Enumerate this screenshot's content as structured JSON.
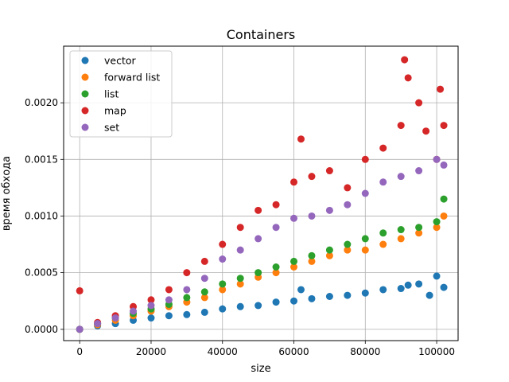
{
  "chart_data": {
    "type": "scatter",
    "title": "Containers",
    "xlabel": "size",
    "ylabel": "время обхода",
    "xlim": [
      -4500,
      106000
    ],
    "ylim": [
      -0.0001,
      0.0025
    ],
    "xticks": [
      0,
      20000,
      40000,
      60000,
      80000,
      100000
    ],
    "xtick_labels": [
      "0",
      "20000",
      "40000",
      "60000",
      "80000",
      "100000"
    ],
    "yticks": [
      0.0,
      0.0005,
      0.001,
      0.0015,
      0.002
    ],
    "ytick_labels": [
      "0.0000",
      "0.0005",
      "0.0010",
      "0.0015",
      "0.0020"
    ],
    "grid": true,
    "legend_position": "top-left",
    "series": [
      {
        "name": "vector",
        "color": "#1f77b4",
        "x": [
          0,
          5000,
          10000,
          15000,
          20000,
          25000,
          30000,
          35000,
          40000,
          45000,
          50000,
          55000,
          60000,
          62000,
          65000,
          70000,
          75000,
          80000,
          85000,
          90000,
          92000,
          95000,
          98000,
          100000,
          102000
        ],
        "y": [
          0.0,
          3e-05,
          5e-05,
          8e-05,
          0.0001,
          0.00012,
          0.00013,
          0.00015,
          0.00018,
          0.0002,
          0.00021,
          0.00024,
          0.00025,
          0.00035,
          0.00027,
          0.00029,
          0.0003,
          0.00032,
          0.00035,
          0.00036,
          0.00039,
          0.0004,
          0.0003,
          0.00047,
          0.00037
        ]
      },
      {
        "name": "forward list",
        "color": "#ff7f0e",
        "x": [
          0,
          5000,
          10000,
          15000,
          20000,
          25000,
          30000,
          35000,
          40000,
          45000,
          50000,
          55000,
          60000,
          65000,
          70000,
          75000,
          80000,
          85000,
          90000,
          95000,
          100000,
          102000
        ],
        "y": [
          0.0,
          4e-05,
          8e-05,
          0.00012,
          0.00016,
          0.0002,
          0.00024,
          0.00028,
          0.00035,
          0.0004,
          0.00046,
          0.0005,
          0.00055,
          0.0006,
          0.00065,
          0.0007,
          0.0007,
          0.00075,
          0.0008,
          0.00085,
          0.0009,
          0.001
        ]
      },
      {
        "name": "list",
        "color": "#2ca02c",
        "x": [
          0,
          5000,
          10000,
          15000,
          20000,
          25000,
          30000,
          35000,
          40000,
          45000,
          50000,
          55000,
          60000,
          65000,
          70000,
          75000,
          80000,
          85000,
          90000,
          95000,
          100000,
          102000
        ],
        "y": [
          0.0,
          5e-05,
          0.0001,
          0.00014,
          0.00018,
          0.00022,
          0.00028,
          0.00033,
          0.0004,
          0.00045,
          0.0005,
          0.00055,
          0.0006,
          0.00065,
          0.0007,
          0.00075,
          0.0008,
          0.00085,
          0.00088,
          0.0009,
          0.00095,
          0.00115
        ]
      },
      {
        "name": "map",
        "color": "#d62728",
        "x": [
          0,
          5000,
          10000,
          15000,
          20000,
          25000,
          30000,
          35000,
          40000,
          45000,
          50000,
          55000,
          60000,
          62000,
          65000,
          70000,
          75000,
          80000,
          85000,
          90000,
          91000,
          92000,
          95000,
          97000,
          100000,
          101000,
          102000
        ],
        "y": [
          0.00034,
          6e-05,
          0.00012,
          0.0002,
          0.00026,
          0.00035,
          0.0005,
          0.0006,
          0.00075,
          0.0009,
          0.00105,
          0.0011,
          0.0013,
          0.00168,
          0.00135,
          0.0014,
          0.00125,
          0.0015,
          0.0016,
          0.0018,
          0.00238,
          0.00222,
          0.002,
          0.00175,
          0.0015,
          0.00212,
          0.0018
        ]
      },
      {
        "name": "set",
        "color": "#9467bd",
        "x": [
          0,
          5000,
          10000,
          15000,
          20000,
          25000,
          30000,
          35000,
          40000,
          45000,
          50000,
          55000,
          60000,
          65000,
          70000,
          75000,
          80000,
          85000,
          90000,
          95000,
          100000,
          102000
        ],
        "y": [
          0.0,
          5e-05,
          0.0001,
          0.00016,
          0.00021,
          0.00026,
          0.00035,
          0.00045,
          0.00062,
          0.0007,
          0.0008,
          0.0009,
          0.00098,
          0.001,
          0.00105,
          0.0011,
          0.0012,
          0.0013,
          0.00135,
          0.0014,
          0.0015,
          0.00145
        ]
      }
    ]
  }
}
